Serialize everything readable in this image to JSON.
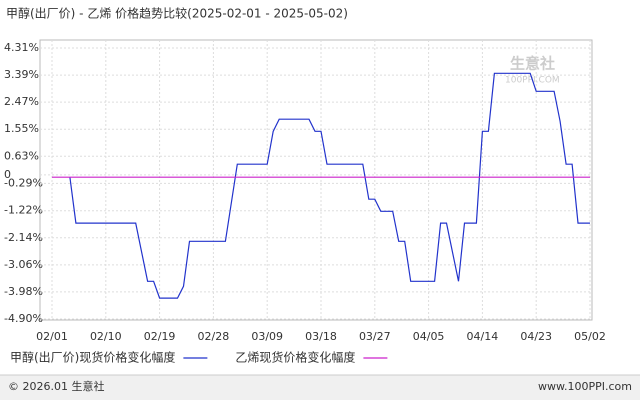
{
  "chart_data": {
    "type": "line",
    "title": "甲醇(出厂价) - 乙烯 价格趋势比较(2025-02-01 - 2025-05-02)",
    "xlim": [
      "02/01",
      "05/02"
    ],
    "xticks": [
      "02/01",
      "02/10",
      "02/19",
      "02/28",
      "03/09",
      "03/18",
      "03/27",
      "04/05",
      "04/14",
      "04/23",
      "05/02"
    ],
    "ylim": [
      -4.9,
      4.31
    ],
    "yticks": [
      {
        "value": 4.31,
        "label": "4.31%"
      },
      {
        "value": 3.39,
        "label": "3.39%"
      },
      {
        "value": 2.47,
        "label": "2.47%"
      },
      {
        "value": 1.55,
        "label": "1.55%"
      },
      {
        "value": 0.63,
        "label": "0.63%"
      },
      0,
      {
        "value": -0.29,
        "label": "-0.29%"
      },
      {
        "value": -1.22,
        "label": "-1.22%"
      },
      {
        "value": -2.14,
        "label": "-2.14%"
      },
      {
        "value": -3.06,
        "label": "-3.06%"
      },
      {
        "value": -3.98,
        "label": "-3.98%"
      },
      {
        "value": -4.9,
        "label": "-4.90%"
      }
    ],
    "grid": true,
    "series": [
      {
        "name": "甲醇(出厂价)现货价格变化幅度",
        "color": "#2233cc",
        "x": [
          "02/04",
          "02/05",
          "02/15",
          "02/17",
          "02/18",
          "02/19",
          "02/22",
          "02/23",
          "02/24",
          "03/02",
          "03/04",
          "03/09",
          "03/10",
          "03/11",
          "03/16",
          "03/17",
          "03/18",
          "03/19",
          "03/25",
          "03/26",
          "03/27",
          "03/28",
          "03/30",
          "03/31",
          "04/01",
          "04/02",
          "04/06",
          "04/07",
          "04/08",
          "04/10",
          "04/11",
          "04/13",
          "04/14",
          "04/15",
          "04/16",
          "04/22",
          "04/23",
          "04/26",
          "04/27",
          "04/28",
          "04/29",
          "04/30",
          "05/02"
        ],
        "values": [
          -0.08,
          -1.64,
          -1.64,
          -3.62,
          -3.62,
          -4.19,
          -4.19,
          -3.79,
          -2.26,
          -2.26,
          0.36,
          0.36,
          1.48,
          1.89,
          1.89,
          1.48,
          1.48,
          0.36,
          0.36,
          -0.83,
          -0.83,
          -1.24,
          -1.24,
          -2.26,
          -2.26,
          -3.62,
          -3.62,
          -1.64,
          -1.64,
          -3.62,
          -1.64,
          -1.64,
          1.48,
          1.48,
          3.45,
          3.45,
          2.84,
          2.84,
          1.82,
          0.36,
          0.36,
          -1.64,
          -1.64
        ]
      },
      {
        "name": "乙烯现货价格变化幅度",
        "color": "#cc22cc",
        "x": [
          "02/01",
          "05/02"
        ],
        "values": [
          -0.08,
          -0.08
        ]
      }
    ],
    "watermark": [
      "生意社",
      "100PPI.COM"
    ],
    "footer_left": "© 2026.01 生意社",
    "footer_right": "www.100PPI.com"
  }
}
